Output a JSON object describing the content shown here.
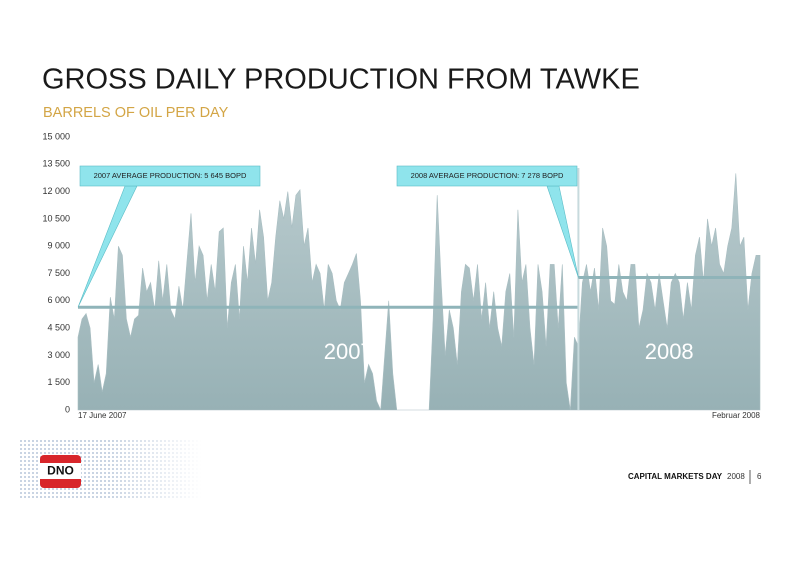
{
  "chart_data": {
    "type": "area",
    "title": "GROSS DAILY PRODUCTION FROM TAWKE",
    "subtitle": "BARRELS OF OIL PER DAY",
    "color": "#a9bec2",
    "categories": [
      "17 June 2007",
      null,
      null,
      null,
      null,
      null,
      null,
      null,
      null,
      null,
      null,
      null,
      null,
      null,
      null,
      null,
      null,
      null,
      null,
      null,
      null,
      null,
      null,
      null,
      null,
      null,
      null,
      null,
      null,
      null,
      null,
      null,
      null,
      null,
      null,
      null,
      null,
      null,
      null,
      null,
      null,
      null,
      null,
      null,
      null,
      null,
      null,
      null,
      null,
      null,
      null,
      null,
      null,
      null,
      null,
      null,
      null,
      null,
      null,
      null,
      null,
      null,
      null,
      null,
      null,
      null,
      null,
      null,
      null,
      null,
      null,
      null,
      null,
      null,
      null,
      null,
      null,
      null,
      null,
      null,
      null,
      null,
      null,
      null,
      null,
      null,
      null,
      null,
      null,
      null,
      null,
      null,
      null,
      null,
      null,
      null,
      null,
      null,
      null,
      null,
      null,
      null,
      null,
      null,
      null,
      null,
      null,
      null,
      null,
      null,
      null,
      null,
      null,
      null,
      null,
      null,
      null,
      null,
      null,
      null,
      null,
      null,
      null,
      null,
      null,
      null,
      null,
      null,
      null,
      null,
      null,
      null,
      null,
      null,
      null,
      null,
      null,
      null,
      null,
      null,
      null,
      null,
      null,
      null,
      null,
      null,
      null,
      null,
      null,
      null,
      null,
      null,
      null,
      null,
      null,
      null,
      null,
      null,
      null,
      null,
      null,
      null,
      null,
      null,
      null,
      null,
      null,
      null,
      null,
      "Februar 2008"
    ],
    "values": [
      4000,
      5000,
      5300,
      4500,
      1500,
      2500,
      1000,
      2000,
      6200,
      5000,
      9000,
      8500,
      5000,
      4000,
      5000,
      5200,
      7800,
      6500,
      7000,
      5500,
      8200,
      6000,
      8000,
      5500,
      5000,
      6800,
      5500,
      8200,
      10800,
      7000,
      9000,
      8500,
      6000,
      8000,
      6500,
      9800,
      10000,
      4500,
      7000,
      8000,
      5000,
      9000,
      7000,
      10000,
      8000,
      11000,
      9500,
      6000,
      7000,
      9500,
      11500,
      10500,
      12000,
      10000,
      11800,
      12100,
      9000,
      10000,
      7000,
      8000,
      7500,
      5500,
      8000,
      7500,
      6000,
      5500,
      7000,
      7500,
      8000,
      8600,
      6000,
      1500,
      2500,
      2000,
      500,
      0,
      3000,
      6000,
      2000,
      0,
      0,
      0,
      0,
      0,
      0,
      0,
      0,
      0,
      5000,
      11800,
      7000,
      3000,
      5500,
      4500,
      2500,
      6500,
      8000,
      7800,
      6000,
      8000,
      5000,
      7000,
      4500,
      6500,
      4500,
      3500,
      6500,
      7500,
      4000,
      11000,
      7000,
      8000,
      4500,
      2500,
      8000,
      6500,
      3500,
      8000,
      8000,
      4500,
      8000,
      1500,
      0,
      4000,
      3500,
      7000,
      8000,
      6500,
      7800,
      5500,
      10000,
      9000,
      6000,
      5800,
      8000,
      6500,
      6000,
      8000,
      8000,
      4500,
      5500,
      7500,
      7000,
      5500,
      7500,
      6000,
      4500,
      7000,
      7500,
      7000,
      5000,
      7000,
      5500,
      8500,
      9500,
      7000,
      10500,
      9000,
      10000,
      8000,
      7500,
      9000,
      10000,
      13000,
      9000,
      9500,
      5500,
      7500,
      8500,
      8500
    ],
    "ylim": [
      0,
      15000
    ],
    "yticks": [
      0,
      {
        "value": 1500,
        "label": "1 500"
      },
      {
        "value": 3000,
        "label": "3 000"
      },
      {
        "value": 4500,
        "label": "4 500"
      },
      {
        "value": 6000,
        "label": "6 000"
      },
      {
        "value": 7500,
        "label": "7 500"
      },
      {
        "value": 9000,
        "label": "9 000"
      },
      {
        "value": 10500,
        "label": "10 500"
      },
      {
        "value": 12000,
        "label": "12 000"
      },
      {
        "value": 13500,
        "label": "13 500"
      },
      {
        "value": 15000,
        "label": "15 000"
      }
    ],
    "reference_lines": [
      {
        "value": 5645,
        "from": 0,
        "to": 124,
        "label": "2007 AVERAGE PRODUCTION: 5 645 BOPD",
        "period": "2007"
      },
      {
        "value": 7278,
        "from": 124,
        "to": 169,
        "label": "2008 AVERAGE PRODUCTION: 7 278 BOPD",
        "period": "2008"
      }
    ]
  },
  "footer": {
    "logo": "DNO",
    "event": "CAPITAL MARKETS DAY",
    "year": "2008",
    "page": "6"
  }
}
